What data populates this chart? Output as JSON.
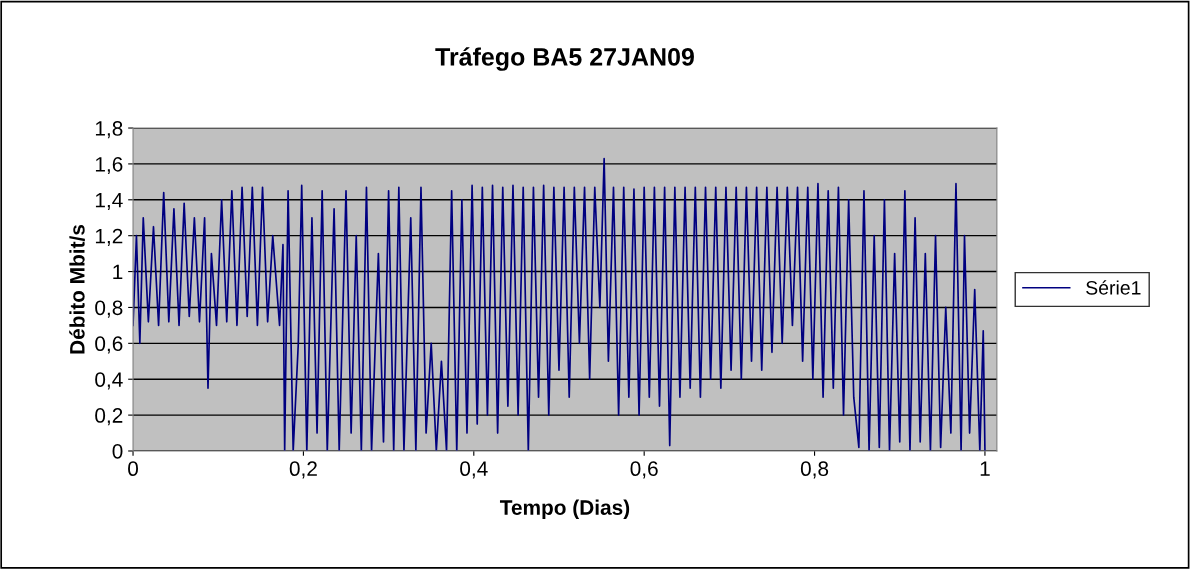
{
  "chart_data": {
    "type": "line",
    "title": "Tráfego BA5 27JAN09",
    "xlabel": "Tempo (Dias)",
    "ylabel": "Débito Mbit/s",
    "xlim": [
      0,
      1.014
    ],
    "ylim": [
      0,
      1.8
    ],
    "xticks": [
      0,
      {
        "value": 0.2,
        "label": "0,2"
      },
      {
        "value": 0.4,
        "label": "0,4"
      },
      {
        "value": 0.6,
        "label": "0,6"
      },
      {
        "value": 0.8,
        "label": "0,8"
      },
      1
    ],
    "yticks": [
      0,
      {
        "value": 0.2,
        "label": "0,2"
      },
      {
        "value": 0.4,
        "label": "0,4"
      },
      {
        "value": 0.6,
        "label": "0,6"
      },
      {
        "value": 0.8,
        "label": "0,8"
      },
      1,
      {
        "value": 1.2,
        "label": "1,2"
      },
      {
        "value": 1.4,
        "label": "1,4"
      },
      {
        "value": 1.6,
        "label": "1,6"
      },
      {
        "value": 1.8,
        "label": "1,8"
      }
    ],
    "grid": "y",
    "legend": "right",
    "marker": "none",
    "line_style": "solid",
    "series": [
      {
        "name": "Série1",
        "color": "#000080",
        "x": [
          0,
          0.004,
          0.008,
          0.012,
          0.018,
          0.024,
          0.03,
          0.036,
          0.042,
          0.048,
          0.054,
          0.06,
          0.066,
          0.072,
          0.078,
          0.084,
          0.088,
          0.092,
          0.098,
          0.104,
          0.11,
          0.116,
          0.122,
          0.128,
          0.134,
          0.14,
          0.146,
          0.152,
          0.158,
          0.164,
          0.172,
          0.176,
          0.178,
          0.182,
          0.188,
          0.194,
          0.198,
          0.204,
          0.21,
          0.216,
          0.222,
          0.228,
          0.236,
          0.242,
          0.25,
          0.256,
          0.262,
          0.268,
          0.274,
          0.28,
          0.288,
          0.294,
          0.3,
          0.306,
          0.312,
          0.318,
          0.326,
          0.332,
          0.338,
          0.344,
          0.35,
          0.356,
          0.362,
          0.368,
          0.374,
          0.38,
          0.386,
          0.392,
          0.398,
          0.404,
          0.41,
          0.416,
          0.422,
          0.428,
          0.434,
          0.44,
          0.446,
          0.452,
          0.458,
          0.464,
          0.47,
          0.476,
          0.482,
          0.488,
          0.494,
          0.5,
          0.506,
          0.512,
          0.518,
          0.524,
          0.53,
          0.536,
          0.542,
          0.548,
          0.553,
          0.558,
          0.564,
          0.57,
          0.576,
          0.582,
          0.588,
          0.594,
          0.6,
          0.606,
          0.612,
          0.618,
          0.624,
          0.63,
          0.636,
          0.642,
          0.648,
          0.654,
          0.66,
          0.666,
          0.672,
          0.678,
          0.684,
          0.69,
          0.696,
          0.702,
          0.708,
          0.714,
          0.72,
          0.726,
          0.732,
          0.738,
          0.744,
          0.75,
          0.756,
          0.762,
          0.768,
          0.774,
          0.78,
          0.786,
          0.792,
          0.798,
          0.804,
          0.81,
          0.816,
          0.822,
          0.828,
          0.834,
          0.84,
          0.846,
          0.852,
          0.858,
          0.864,
          0.87,
          0.876,
          0.882,
          0.888,
          0.894,
          0.9,
          0.906,
          0.912,
          0.918,
          0.924,
          0.93,
          0.936,
          0.942,
          0.948,
          0.954,
          0.96,
          0.966,
          0.972,
          0.976,
          0.982,
          0.988,
          0.994,
          0.998,
          1.0
        ],
        "values": [
          0.7,
          1.2,
          0.6,
          1.3,
          0.72,
          1.25,
          0.7,
          1.44,
          0.72,
          1.35,
          0.7,
          1.38,
          0.75,
          1.3,
          0.72,
          1.3,
          0.35,
          1.1,
          0.7,
          1.4,
          0.72,
          1.45,
          0.7,
          1.47,
          0.75,
          1.47,
          0.7,
          1.47,
          0.72,
          1.2,
          0.7,
          1.15,
          0,
          1.45,
          0,
          0.6,
          1.48,
          0,
          1.3,
          0.1,
          1.45,
          0,
          1.35,
          0,
          1.45,
          0.1,
          1.2,
          0,
          1.47,
          0,
          1.1,
          0.05,
          1.45,
          0,
          1.47,
          0,
          1.3,
          0,
          1.47,
          0.1,
          0.6,
          0,
          0.5,
          0,
          1.45,
          0,
          1.4,
          0.1,
          1.48,
          0.15,
          1.47,
          0.2,
          1.48,
          0.1,
          1.47,
          0.25,
          1.48,
          0.2,
          1.47,
          0,
          1.47,
          0.3,
          1.48,
          0.2,
          1.47,
          0.45,
          1.47,
          0.3,
          1.47,
          0.6,
          1.47,
          0.4,
          1.47,
          0.8,
          1.63,
          0.5,
          1.47,
          0.2,
          1.47,
          0.3,
          1.46,
          0.2,
          1.47,
          0.3,
          1.47,
          0.25,
          1.47,
          0.03,
          1.47,
          0.3,
          1.47,
          0.35,
          1.47,
          0.3,
          1.47,
          0.4,
          1.47,
          0.35,
          1.47,
          0.45,
          1.47,
          0.4,
          1.47,
          0.5,
          1.47,
          0.45,
          1.47,
          0.55,
          1.47,
          0.6,
          1.47,
          0.7,
          1.47,
          0.5,
          1.47,
          0.4,
          1.49,
          0.3,
          1.45,
          0.35,
          1.47,
          0.2,
          1.4,
          0.3,
          0.02,
          1.45,
          0,
          1.2,
          0.02,
          1.4,
          0,
          1.1,
          0.05,
          1.45,
          0,
          1.3,
          0.05,
          1.1,
          0,
          1.2,
          0.02,
          0.8,
          0.1,
          1.49,
          0,
          1.2,
          0.1,
          0.9,
          0,
          0.67,
          0
        ]
      }
    ]
  }
}
